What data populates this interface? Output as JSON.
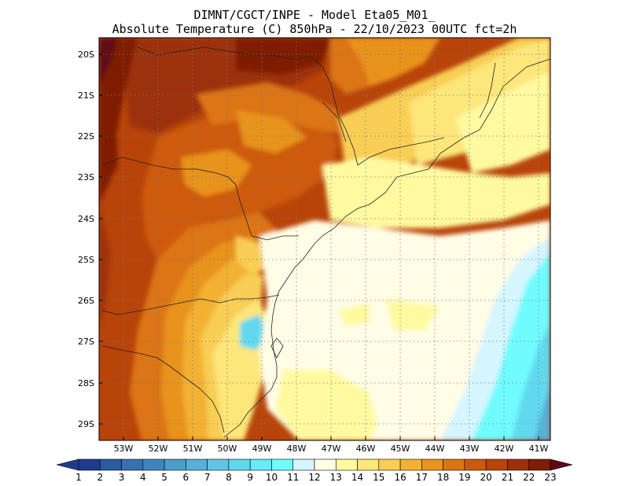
{
  "header": {
    "line1": "DIMNT/CGCT/INPE -  Model Eta05_M01_",
    "line2": "Absolute Temperature (C) 850hPa -  22/10/2023 00UTC fct=2h"
  },
  "map": {
    "lat_labels": [
      "20S",
      "21S",
      "22S",
      "23S",
      "24S",
      "25S",
      "26S",
      "27S",
      "28S",
      "29S"
    ],
    "lon_labels": [
      "53W",
      "52W",
      "51W",
      "50W",
      "49W",
      "48W",
      "47W",
      "46W",
      "45W",
      "44W",
      "43W",
      "42W",
      "41W"
    ],
    "lat_range": [
      -29.4,
      -19.7
    ],
    "lon_range": [
      -53.6,
      -40.6
    ],
    "gridlines": true
  },
  "colorbar": {
    "labels": [
      "1",
      "2",
      "3",
      "4",
      "5",
      "6",
      "7",
      "8",
      "9",
      "10",
      "11",
      "12",
      "13",
      "14",
      "15",
      "16",
      "17",
      "18",
      "19",
      "20",
      "21",
      "22",
      "23"
    ],
    "colors": [
      "#1f3c8c",
      "#2a5aa0",
      "#3572b0",
      "#3f86bf",
      "#4c9ccc",
      "#57b0d8",
      "#5ec6e3",
      "#62d8ef",
      "#66ecf8",
      "#6ffcff",
      "#d5f5ff",
      "#fffde6",
      "#fffaa0",
      "#fde67a",
      "#f8ce55",
      "#f2b132",
      "#e8931e",
      "#dc7414",
      "#cd5a0c",
      "#b84409",
      "#9c3008",
      "#7f1d06",
      "#5e0a16"
    ],
    "unit": "C"
  }
}
